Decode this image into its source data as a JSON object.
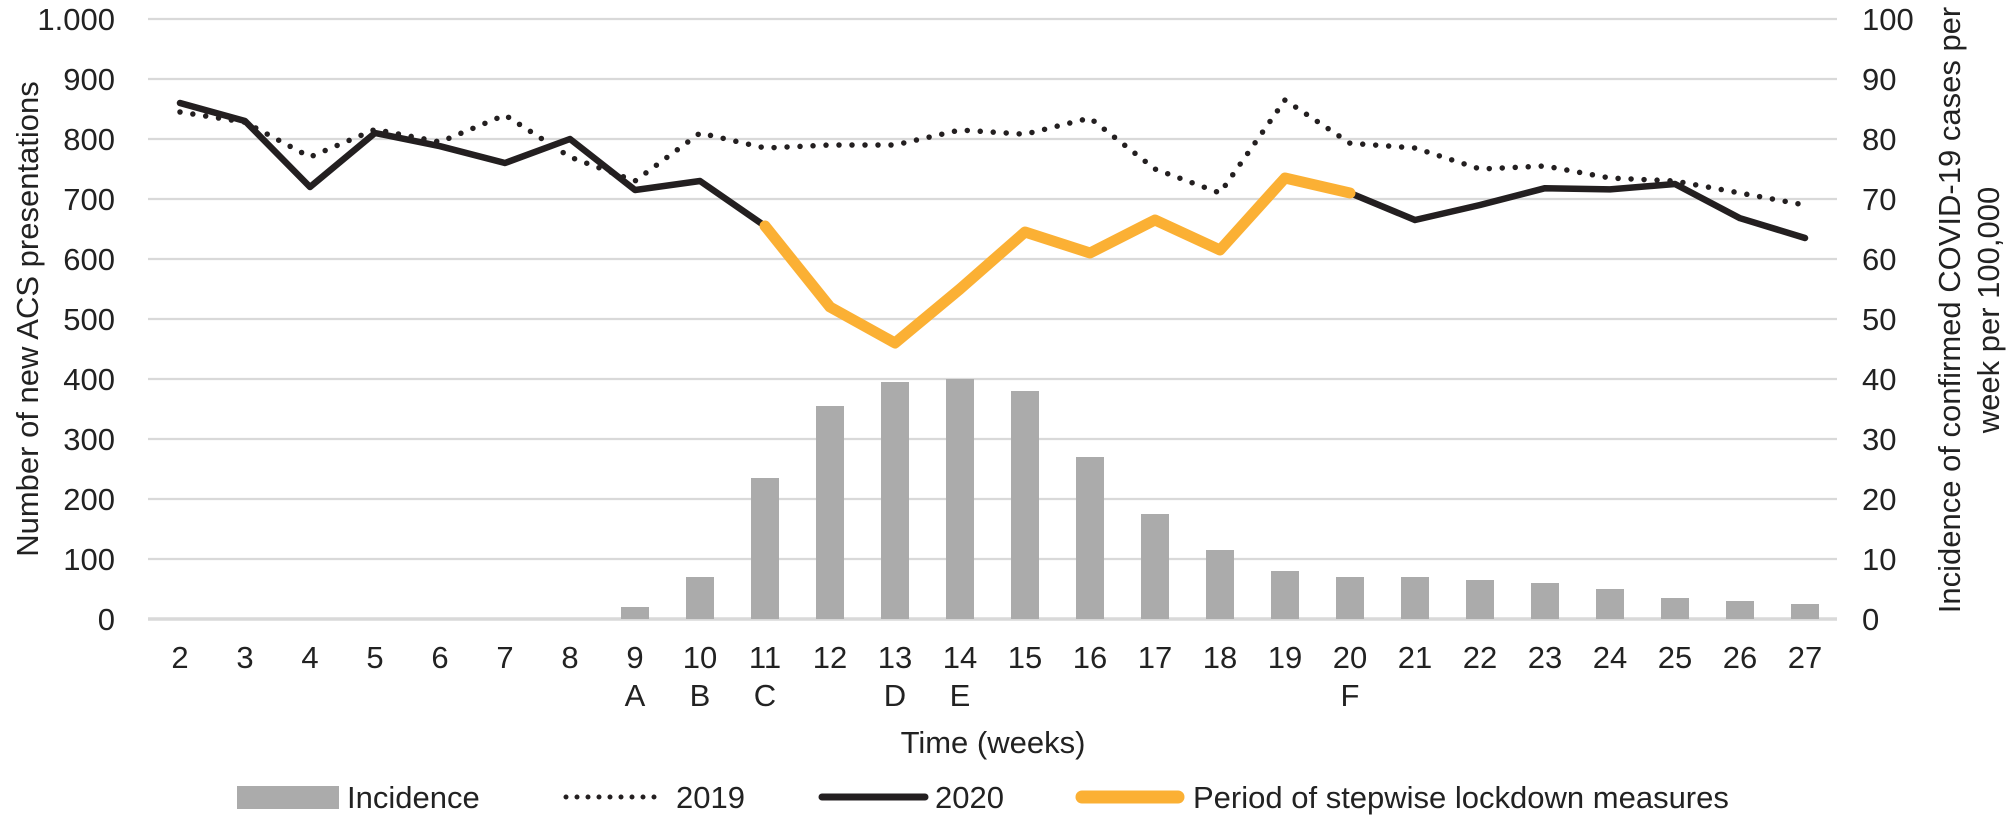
{
  "figure": {
    "left_axis": {
      "title": "Number of new ACS presentations",
      "tick_labels": [
        "0",
        "100",
        "200",
        "300",
        "400",
        "500",
        "600",
        "700",
        "800",
        "900",
        "1.000"
      ]
    },
    "right_axis": {
      "title_line1": "Incidence of confirmed COVID-19 cases per",
      "title_line2": "week per 100,000",
      "tick_labels": [
        "0",
        "10",
        "20",
        "30",
        "40",
        "50",
        "60",
        "70",
        "80",
        "90",
        "100"
      ]
    },
    "x_axis": {
      "title": "Time (weeks)",
      "letters": [
        {
          "week": 9,
          "label": "A"
        },
        {
          "week": 10,
          "label": "B"
        },
        {
          "week": 11,
          "label": "C"
        },
        {
          "week": 13,
          "label": "D"
        },
        {
          "week": 14,
          "label": "E"
        },
        {
          "week": 20,
          "label": "F"
        }
      ]
    },
    "legend": [
      {
        "label": "Incidence",
        "swatch": "bar-swatch",
        "color": "#ABABAB"
      },
      {
        "label": "2019",
        "swatch": "dotted-line-swatch",
        "color": "#231F20"
      },
      {
        "label": "2020",
        "swatch": "solid-line-swatch",
        "color": "#231F20"
      },
      {
        "label": "Period of stepwise lockdown measures",
        "swatch": "thick-line-swatch",
        "color": "#FBB034"
      }
    ],
    "colors": {
      "bars": "#ABABAB",
      "lines": "#231F20",
      "lockdown": "#FBB034",
      "gridlines": "#D9D9D9",
      "text": "#222222"
    }
  },
  "chart_data": {
    "type": "combo bar+line",
    "x": [
      2,
      3,
      4,
      5,
      6,
      7,
      8,
      9,
      10,
      11,
      12,
      13,
      14,
      15,
      16,
      17,
      18,
      19,
      20,
      21,
      22,
      23,
      24,
      25,
      26,
      27
    ],
    "xlabel": "Time (weeks)",
    "ylabel_left": "Number of new ACS presentations",
    "ylabel_right": "Incidence of confirmed COVID-19 cases per week per 100,000",
    "ylim_left": [
      0,
      1000
    ],
    "ylim_right": [
      0,
      100
    ],
    "grid": true,
    "legend_position": "bottom",
    "series": [
      {
        "name": "Incidence",
        "type": "bar",
        "axis": "right",
        "values": [
          null,
          null,
          null,
          null,
          null,
          null,
          null,
          2,
          7,
          23.5,
          35.5,
          39.5,
          40,
          38,
          27,
          17.5,
          11.5,
          8,
          7,
          7,
          6.5,
          6,
          5,
          3.5,
          3,
          2.5
        ]
      },
      {
        "name": "2019",
        "type": "line",
        "style": "dotted",
        "axis": "left",
        "values": [
          845,
          828,
          770,
          816,
          795,
          840,
          770,
          730,
          810,
          785,
          790,
          790,
          815,
          808,
          835,
          750,
          710,
          865,
          793,
          785,
          750,
          755,
          735,
          730,
          710,
          690
        ]
      },
      {
        "name": "2020",
        "type": "line",
        "style": "solid",
        "axis": "left",
        "values": [
          860,
          830,
          720,
          810,
          788,
          760,
          800,
          715,
          730,
          655,
          520,
          460,
          550,
          645,
          610,
          665,
          615,
          735,
          710,
          665,
          690,
          718,
          716,
          725,
          668,
          635
        ]
      },
      {
        "name": "Period of stepwise lockdown measures",
        "type": "line",
        "style": "solid-thick",
        "axis": "left",
        "start_week": 11,
        "values": [
          655,
          520,
          460,
          550,
          645,
          610,
          665,
          615,
          735,
          710
        ]
      }
    ],
    "annotations": [
      "A@9",
      "B@10",
      "C@11",
      "D@13",
      "E@14",
      "F@20"
    ]
  }
}
